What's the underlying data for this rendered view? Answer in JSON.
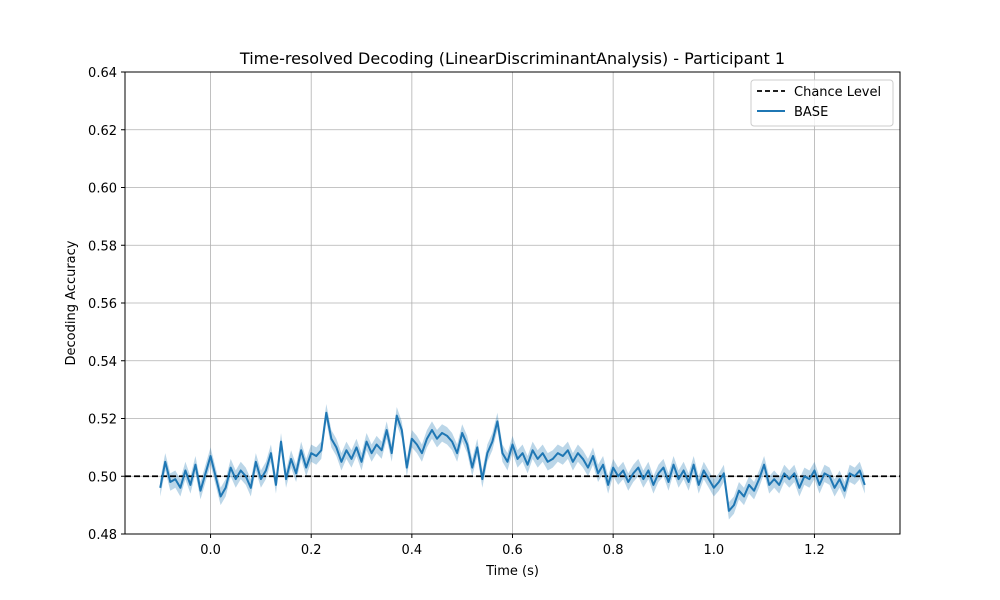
{
  "chart_data": {
    "type": "line",
    "title": "Time-resolved Decoding (LinearDiscriminantAnalysis) - Participant 1",
    "xlabel": "Time (s)",
    "ylabel": "Decoding Accuracy",
    "xlim": [
      -0.17,
      1.37
    ],
    "ylim": [
      0.48,
      0.64
    ],
    "xticks": [
      0.0,
      0.2,
      0.4,
      0.6,
      0.8,
      1.0,
      1.2
    ],
    "xtick_labels": [
      "0.0",
      "0.2",
      "0.4",
      "0.6",
      "0.8",
      "1.0",
      "1.2"
    ],
    "yticks": [
      0.48,
      0.5,
      0.52,
      0.54,
      0.56,
      0.58,
      0.6,
      0.62,
      0.64
    ],
    "ytick_labels": [
      "0.48",
      "0.50",
      "0.52",
      "0.54",
      "0.56",
      "0.58",
      "0.60",
      "0.62",
      "0.64"
    ],
    "grid": true,
    "legend_position": "top-right",
    "chance_level": {
      "name": "Chance Level",
      "value": 0.5,
      "color": "#000000",
      "style": "dashed"
    },
    "series": [
      {
        "name": "BASE",
        "color": "#1f77b4",
        "band_color": "#1f77b4",
        "band_opacity": 0.3,
        "x": [
          -0.1,
          -0.09,
          -0.08,
          -0.07,
          -0.06,
          -0.05,
          -0.04,
          -0.03,
          -0.02,
          -0.01,
          0.0,
          0.01,
          0.02,
          0.03,
          0.04,
          0.05,
          0.06,
          0.07,
          0.08,
          0.09,
          0.1,
          0.11,
          0.12,
          0.13,
          0.14,
          0.15,
          0.16,
          0.17,
          0.18,
          0.19,
          0.2,
          0.21,
          0.22,
          0.23,
          0.24,
          0.25,
          0.26,
          0.27,
          0.28,
          0.29,
          0.3,
          0.31,
          0.32,
          0.33,
          0.34,
          0.35,
          0.36,
          0.37,
          0.38,
          0.39,
          0.4,
          0.41,
          0.42,
          0.43,
          0.44,
          0.45,
          0.46,
          0.47,
          0.48,
          0.49,
          0.5,
          0.51,
          0.52,
          0.53,
          0.54,
          0.55,
          0.56,
          0.57,
          0.58,
          0.59,
          0.6,
          0.61,
          0.62,
          0.63,
          0.64,
          0.65,
          0.66,
          0.67,
          0.68,
          0.69,
          0.7,
          0.71,
          0.72,
          0.73,
          0.74,
          0.75,
          0.76,
          0.77,
          0.78,
          0.79,
          0.8,
          0.81,
          0.82,
          0.83,
          0.84,
          0.85,
          0.86,
          0.87,
          0.88,
          0.89,
          0.9,
          0.91,
          0.92,
          0.93,
          0.94,
          0.95,
          0.96,
          0.97,
          0.98,
          0.99,
          1.0,
          1.01,
          1.02,
          1.03,
          1.04,
          1.05,
          1.06,
          1.07,
          1.08,
          1.09,
          1.1,
          1.11,
          1.12,
          1.13,
          1.14,
          1.15,
          1.16,
          1.17,
          1.18,
          1.19,
          1.2,
          1.21,
          1.22,
          1.23,
          1.24,
          1.25,
          1.26,
          1.27,
          1.28,
          1.29,
          1.3
        ],
        "y": [
          0.496,
          0.505,
          0.498,
          0.499,
          0.496,
          0.502,
          0.497,
          0.504,
          0.495,
          0.501,
          0.507,
          0.5,
          0.493,
          0.496,
          0.503,
          0.499,
          0.502,
          0.5,
          0.496,
          0.505,
          0.499,
          0.502,
          0.508,
          0.497,
          0.512,
          0.499,
          0.506,
          0.501,
          0.509,
          0.503,
          0.508,
          0.507,
          0.509,
          0.522,
          0.513,
          0.51,
          0.505,
          0.509,
          0.506,
          0.51,
          0.505,
          0.512,
          0.508,
          0.511,
          0.509,
          0.516,
          0.508,
          0.521,
          0.516,
          0.503,
          0.513,
          0.511,
          0.508,
          0.513,
          0.516,
          0.513,
          0.515,
          0.514,
          0.512,
          0.508,
          0.515,
          0.511,
          0.503,
          0.51,
          0.499,
          0.508,
          0.512,
          0.519,
          0.508,
          0.505,
          0.511,
          0.506,
          0.508,
          0.504,
          0.509,
          0.506,
          0.508,
          0.505,
          0.506,
          0.508,
          0.507,
          0.509,
          0.505,
          0.508,
          0.506,
          0.503,
          0.507,
          0.501,
          0.504,
          0.497,
          0.503,
          0.5,
          0.502,
          0.498,
          0.501,
          0.503,
          0.499,
          0.502,
          0.497,
          0.501,
          0.503,
          0.498,
          0.504,
          0.499,
          0.502,
          0.498,
          0.504,
          0.497,
          0.502,
          0.499,
          0.496,
          0.498,
          0.501,
          0.488,
          0.49,
          0.495,
          0.493,
          0.497,
          0.495,
          0.499,
          0.504,
          0.497,
          0.499,
          0.497,
          0.501,
          0.499,
          0.501,
          0.496,
          0.5,
          0.499,
          0.502,
          0.497,
          0.501,
          0.5,
          0.496,
          0.499,
          0.495,
          0.501,
          0.5,
          0.502,
          0.497
        ],
        "band_half_width": 0.003
      }
    ]
  }
}
